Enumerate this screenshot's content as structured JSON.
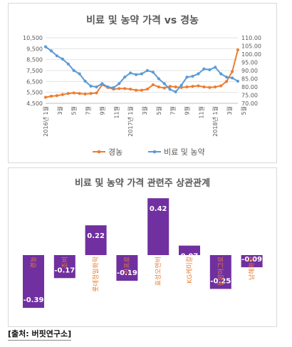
{
  "chart_data": [
    {
      "type": "line",
      "title": "비료 및 농약 가격 vs 경농",
      "x_tick_labels": [
        "2016년 1월",
        "3월",
        "5월",
        "7월",
        "9월",
        "11월",
        "2017년 1월",
        "3월",
        "5월",
        "7월",
        "9월",
        "11월",
        "2018년 1월",
        "3월",
        "5월"
      ],
      "y_left": {
        "ylim": [
          4500,
          10500
        ],
        "ticks": [
          "4,500",
          "5,500",
          "6,500",
          "7,500",
          "8,500",
          "9,500",
          "10,500"
        ]
      },
      "y_right": {
        "ylim": [
          70,
          110
        ],
        "ticks": [
          "70.00",
          "75.00",
          "80.00",
          "85.00",
          "90.00",
          "95.00",
          "100.00",
          "105.00",
          "110.00"
        ]
      },
      "legend_position": "bottom",
      "series": [
        {
          "name": "경농",
          "color": "#ed7d31",
          "axis": "left",
          "values": [
            5050,
            5150,
            5200,
            5300,
            5400,
            5450,
            5400,
            5350,
            5400,
            5450,
            6200,
            5950,
            5800,
            5850,
            5850,
            5800,
            5700,
            5700,
            5800,
            6200,
            6000,
            5900,
            6050,
            6000,
            5950,
            6000,
            6050,
            6100,
            6000,
            5950,
            6000,
            6100,
            6500,
            7400,
            9400
          ]
        },
        {
          "name": "비료 및 농약",
          "color": "#5b9bd5",
          "axis": "right",
          "values": [
            104.5,
            102,
            99,
            97,
            94,
            90,
            88,
            83.5,
            80.5,
            80,
            82,
            80,
            79.5,
            82,
            86,
            88.5,
            87.5,
            88,
            90,
            89,
            85,
            82,
            78.5,
            77,
            81,
            86,
            86.5,
            88,
            91,
            90.5,
            92,
            88,
            86,
            85.5,
            83.5
          ]
        }
      ]
    },
    {
      "type": "bar",
      "title": "비료 및 농약 가격 관련주 상관관계",
      "categories": [
        "경농",
        "조비",
        "롯데정밀화학",
        "카프로",
        "효성오앤비",
        "KG케미칼",
        "동방아그로",
        "남해화학"
      ],
      "values": [
        -0.39,
        -0.17,
        0.22,
        -0.19,
        0.42,
        0.07,
        -0.25,
        -0.09
      ],
      "value_labels": [
        "-0.39",
        "-0.17",
        "0.22",
        "-0.19",
        "0.42",
        "0.07",
        "-0.25",
        "-0.09"
      ],
      "bar_color": "#7030a0",
      "category_label_color": "#ed7d31"
    }
  ],
  "source": "[출처: 버핏연구소]"
}
